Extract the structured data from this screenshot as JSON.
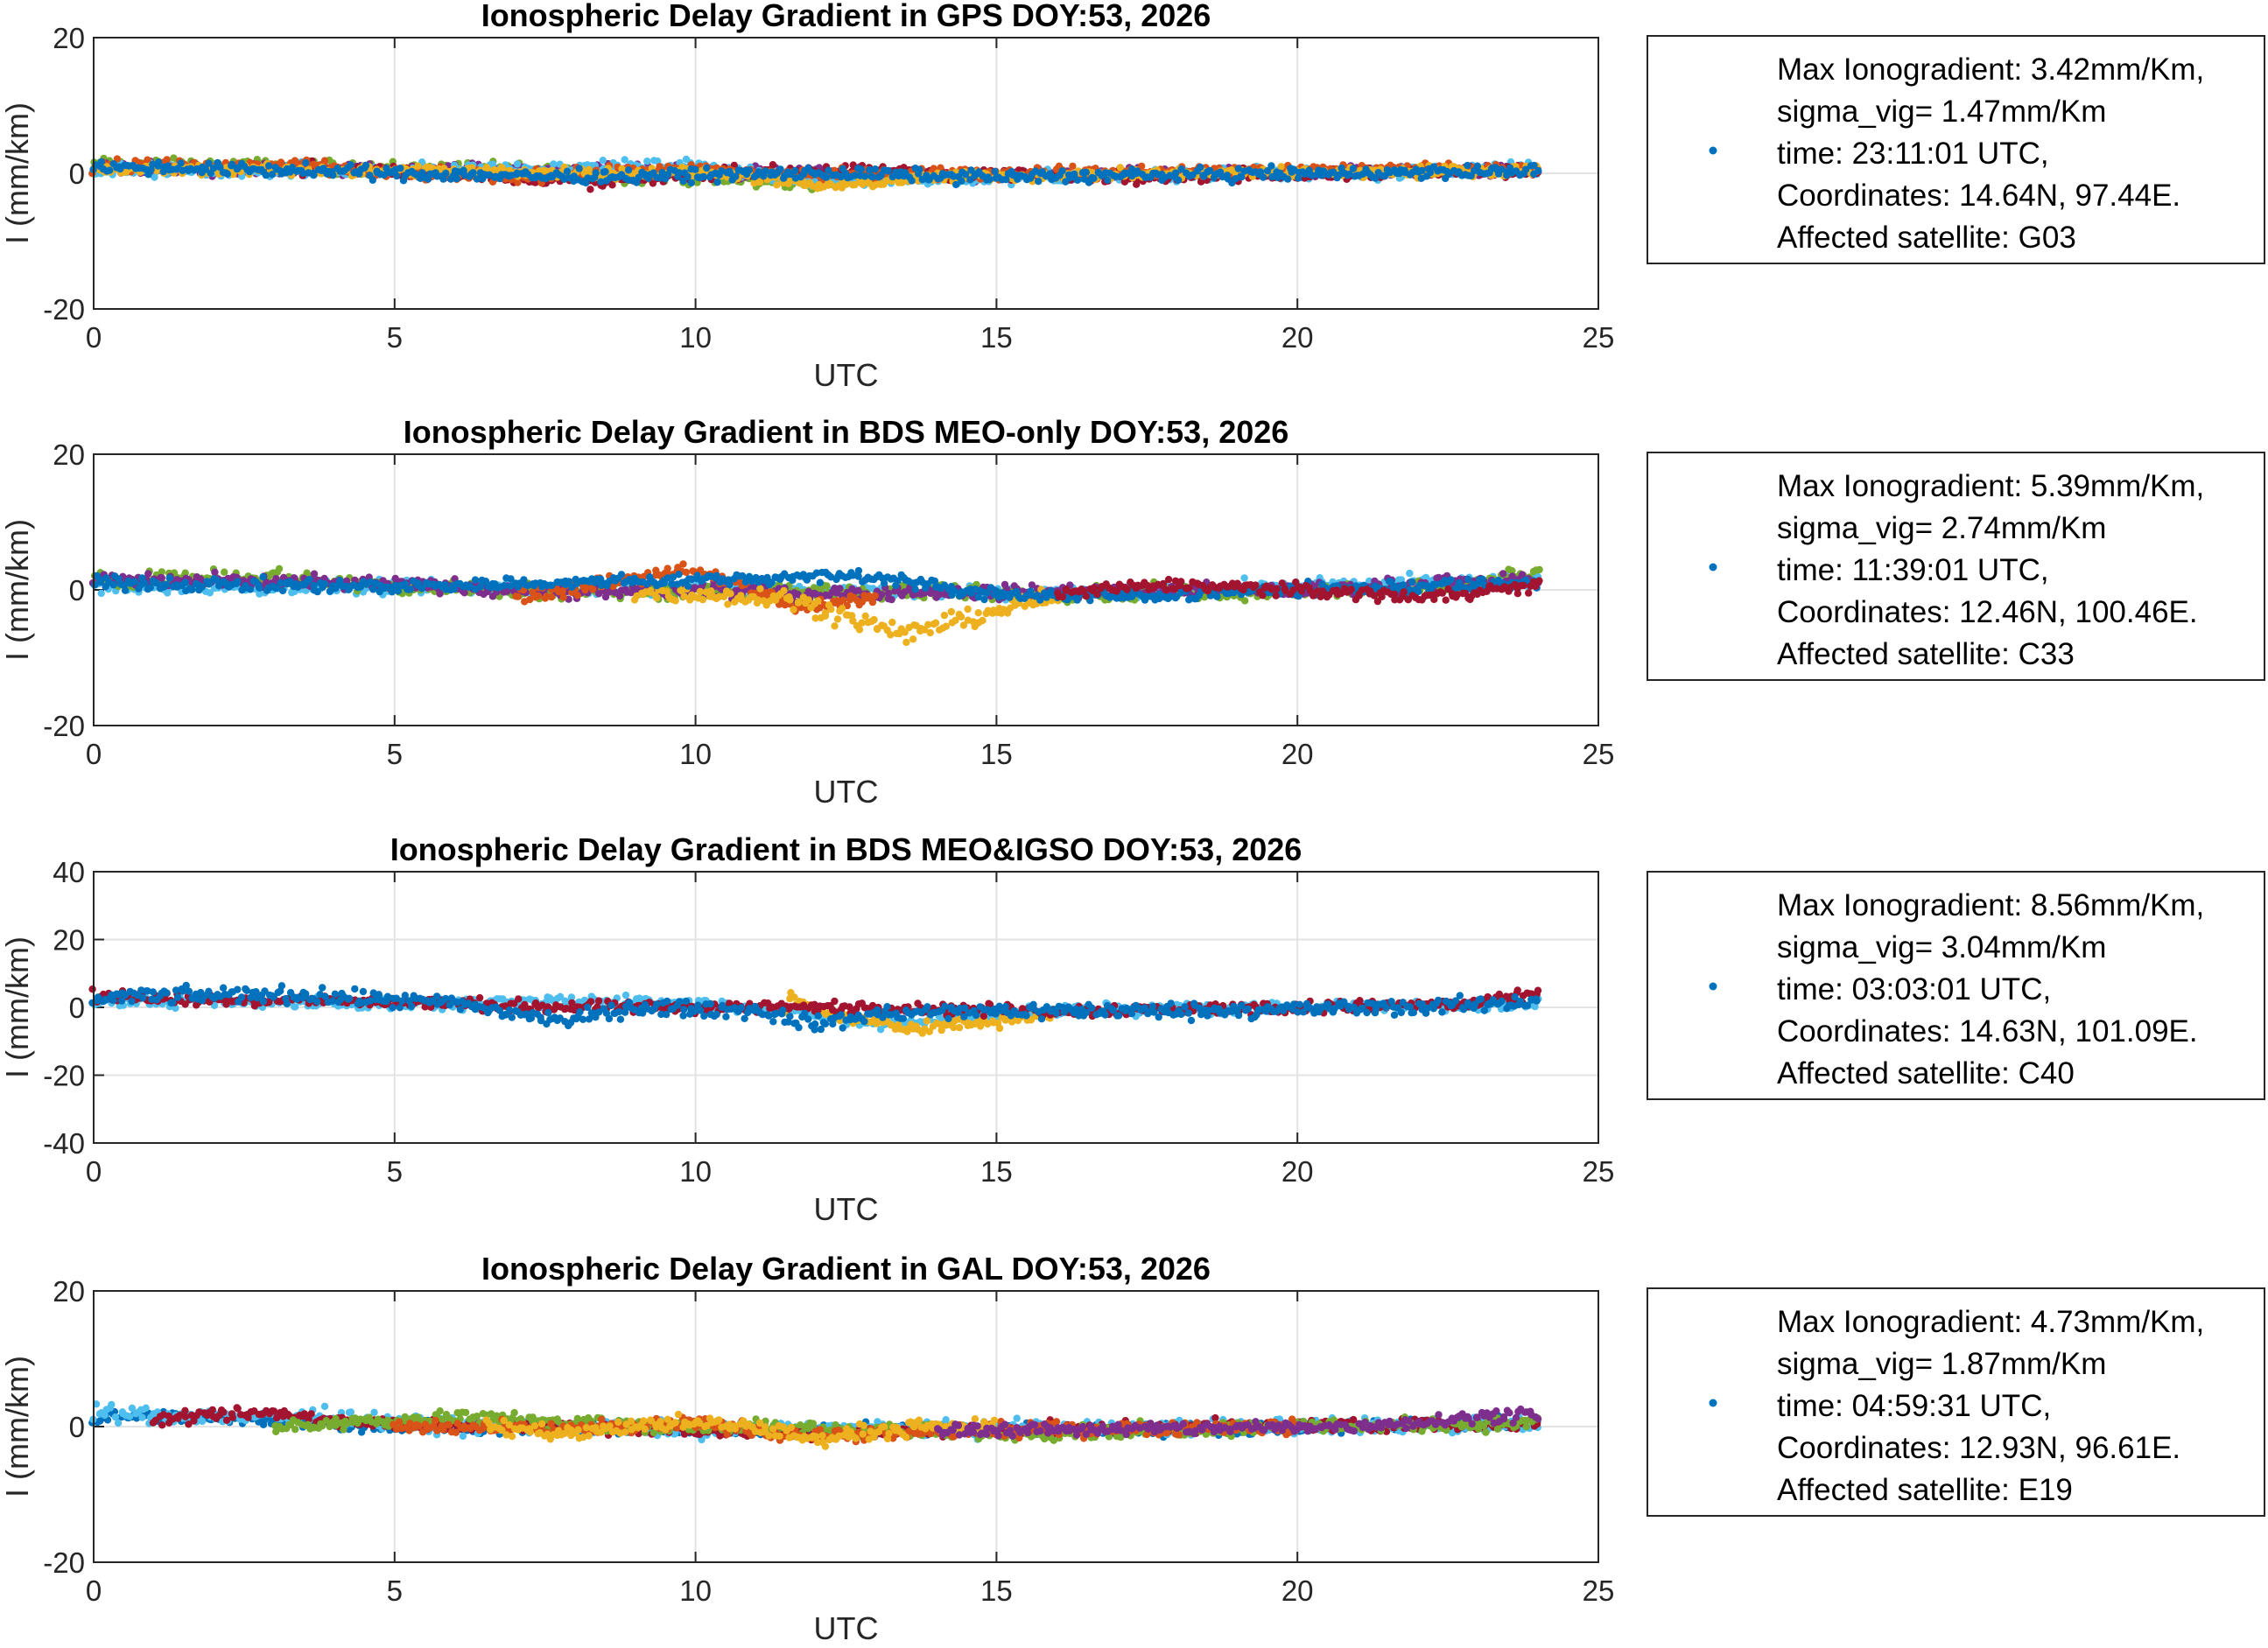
{
  "colors": {
    "blue": "#0072BD",
    "orange": "#D95319",
    "yellow": "#EDB120",
    "purple": "#7E2F8E",
    "green": "#77AC30",
    "cyan": "#4DBEEE",
    "red": "#A2142F"
  },
  "chart_data": [
    {
      "type": "scatter",
      "title": "Ionospheric Delay Gradient in GPS DOY:53, 2026",
      "xlabel": "UTC",
      "ylabel": "I (mm/km)",
      "xlim": [
        0,
        25
      ],
      "ylim": [
        -20,
        20
      ],
      "xticks": [
        0,
        5,
        10,
        15,
        20,
        25
      ],
      "yticks": [
        -20,
        0,
        20
      ],
      "grid": true,
      "legend": {
        "placement": "outside-right",
        "marker_color": "#0072BD",
        "lines": [
          "Max Ionogradient:  3.42mm/Km,",
          "sigma_vig= 1.47mm/Km",
          "time: 23:11:01 UTC,",
          "Coordinates: 14.64N,  97.44E.",
          "Affected satellite: G03"
        ]
      },
      "series": [
        {
          "color": "#77AC30",
          "spread": 0.9,
          "trend": [
            [
              0,
              1.2
            ],
            [
              3,
              1
            ],
            [
              7,
              0.5
            ],
            [
              12,
              -1.5
            ]
          ]
        },
        {
          "color": "#7E2F8E",
          "spread": 0.8,
          "trend": [
            [
              0,
              0.8
            ],
            [
              4,
              0.5
            ],
            [
              10,
              0.3
            ],
            [
              14,
              -0.5
            ],
            [
              24,
              0.5
            ]
          ]
        },
        {
          "color": "#4DBEEE",
          "spread": 0.9,
          "trend": [
            [
              0,
              0.5
            ],
            [
              5,
              0.3
            ],
            [
              10,
              1
            ],
            [
              12,
              -1
            ],
            [
              16,
              -0.5
            ],
            [
              24,
              0.5
            ]
          ]
        },
        {
          "color": "#A2142F",
          "spread": 0.8,
          "trend": [
            [
              3,
              1
            ],
            [
              6,
              0
            ],
            [
              8.5,
              -1.5
            ],
            [
              10,
              0
            ],
            [
              12,
              0.3
            ],
            [
              17,
              -0.5
            ],
            [
              24,
              0.5
            ]
          ]
        },
        {
          "color": "#D95319",
          "spread": 0.8,
          "trend": [
            [
              0,
              1.2
            ],
            [
              3.5,
              1
            ],
            [
              5,
              0
            ],
            [
              7,
              -0.5
            ],
            [
              10,
              0.5
            ],
            [
              12,
              -0.3
            ],
            [
              24,
              0.8
            ]
          ]
        },
        {
          "color": "#EDB120",
          "spread": 0.7,
          "trend": [
            [
              0,
              0.5
            ],
            [
              2,
              0.5
            ],
            [
              10.5,
              0
            ],
            [
              12,
              -2
            ],
            [
              14,
              -0.5
            ],
            [
              24,
              0.5
            ]
          ]
        },
        {
          "color": "#0072BD",
          "spread": 0.8,
          "trend": [
            [
              0,
              1
            ],
            [
              3,
              0.5
            ],
            [
              5,
              0
            ],
            [
              8,
              -0.5
            ],
            [
              12,
              0
            ],
            [
              15,
              -0.5
            ],
            [
              24,
              0.3
            ]
          ]
        }
      ]
    },
    {
      "type": "scatter",
      "title": "Ionospheric Delay Gradient in BDS MEO-only DOY:53, 2026",
      "xlabel": "UTC",
      "ylabel": "I (mm/km)",
      "xlim": [
        0,
        25
      ],
      "ylim": [
        -20,
        20
      ],
      "xticks": [
        0,
        5,
        10,
        15,
        20,
        25
      ],
      "yticks": [
        -20,
        0,
        20
      ],
      "grid": true,
      "legend": {
        "placement": "outside-right",
        "marker_color": "#0072BD",
        "lines": [
          "Max Ionogradient:  5.39mm/Km,",
          "sigma_vig= 2.74mm/Km",
          "time: 11:39:01 UTC,",
          "Coordinates: 12.46N, 100.46E.",
          "Affected satellite: C33"
        ]
      },
      "series": [
        {
          "color": "#4DBEEE",
          "spread": 0.9,
          "trend": [
            [
              0,
              0.5
            ],
            [
              6,
              0.3
            ],
            [
              12,
              0
            ],
            [
              16,
              -0.5
            ],
            [
              24,
              1.5
            ]
          ]
        },
        {
          "color": "#77AC30",
          "spread": 1.0,
          "trend": [
            [
              0,
              1.5
            ],
            [
              3,
              2
            ],
            [
              5,
              0.5
            ],
            [
              7,
              0
            ],
            [
              16,
              -0.5
            ],
            [
              22,
              0
            ],
            [
              24,
              2.5
            ]
          ]
        },
        {
          "color": "#7E2F8E",
          "spread": 0.9,
          "trend": [
            [
              0,
              1.5
            ],
            [
              4,
              1
            ],
            [
              6,
              0.5
            ],
            [
              8,
              -0.5
            ],
            [
              10,
              0
            ],
            [
              12,
              -0.5
            ],
            [
              20,
              0
            ],
            [
              24,
              1.5
            ]
          ]
        },
        {
          "color": "#D95319",
          "spread": 1.0,
          "trend": [
            [
              7,
              -1
            ],
            [
              8.5,
              1
            ],
            [
              9.8,
              3
            ],
            [
              11,
              0
            ],
            [
              11.8,
              -3
            ],
            [
              13,
              -1
            ]
          ]
        },
        {
          "color": "#EDB120",
          "spread": 1.2,
          "trend": [
            [
              9,
              -0.5
            ],
            [
              11.5,
              -1
            ],
            [
              12.5,
              -4
            ],
            [
              13.5,
              -6.5
            ],
            [
              15,
              -3
            ],
            [
              16,
              -1
            ]
          ]
        },
        {
          "color": "#0072BD",
          "spread": 0.8,
          "trend": [
            [
              0,
              1
            ],
            [
              5,
              0.5
            ],
            [
              12.5,
              2
            ],
            [
              13.2,
              2
            ],
            [
              14.5,
              -0.5
            ],
            [
              17,
              -1
            ],
            [
              20,
              0
            ],
            [
              24,
              1
            ]
          ]
        },
        {
          "color": "#A2142F",
          "spread": 0.8,
          "trend": [
            [
              16,
              -0.5
            ],
            [
              18,
              0.8
            ],
            [
              20,
              0
            ],
            [
              22,
              -1
            ],
            [
              24,
              0.5
            ]
          ]
        }
      ]
    },
    {
      "type": "scatter",
      "title": "Ionospheric Delay Gradient in BDS MEO&IGSO DOY:53, 2026",
      "xlabel": "UTC",
      "ylabel": "I (mm/km)",
      "xlim": [
        0,
        25
      ],
      "ylim": [
        -40,
        40
      ],
      "xticks": [
        0,
        5,
        10,
        15,
        20,
        25
      ],
      "yticks": [
        -40,
        -20,
        0,
        20,
        40
      ],
      "grid": true,
      "legend": {
        "placement": "outside-right",
        "marker_color": "#0072BD",
        "lines": [
          "Max Ionogradient:  8.56mm/Km,",
          "sigma_vig= 3.04mm/Km",
          "time: 03:03:01 UTC,",
          "Coordinates: 14.63N, 101.09E.",
          "Affected satellite: C40"
        ]
      },
      "series": [
        {
          "color": "#4DBEEE",
          "spread": 1.5,
          "trend": [
            [
              0,
              2
            ],
            [
              6,
              1
            ],
            [
              9,
              2
            ],
            [
              11,
              0
            ],
            [
              13,
              -5
            ],
            [
              16,
              -1
            ],
            [
              24,
              1
            ]
          ]
        },
        {
          "color": "#EDB120",
          "spread": 1.5,
          "trend": [
            [
              11.5,
              3
            ],
            [
              12.5,
              -3
            ],
            [
              13.5,
              -6
            ],
            [
              15,
              -4
            ],
            [
              16,
              -2
            ]
          ]
        },
        {
          "color": "#A2142F",
          "spread": 1.5,
          "trend": [
            [
              0,
              3
            ],
            [
              4,
              2
            ],
            [
              8,
              0
            ],
            [
              12,
              0
            ],
            [
              16,
              -1
            ],
            [
              20,
              0
            ],
            [
              23,
              1
            ],
            [
              24,
              4
            ]
          ]
        },
        {
          "color": "#0072BD",
          "spread": 2.0,
          "trend": [
            [
              0,
              3
            ],
            [
              3,
              4
            ],
            [
              6,
              1
            ],
            [
              7.8,
              -4
            ],
            [
              9,
              0
            ],
            [
              11,
              -1
            ],
            [
              12,
              -5
            ],
            [
              13,
              -2
            ],
            [
              15,
              -1
            ],
            [
              18,
              -1
            ],
            [
              22,
              0
            ],
            [
              24,
              2
            ]
          ]
        }
      ]
    },
    {
      "type": "scatter",
      "title": "Ionospheric Delay Gradient in GAL DOY:53, 2026",
      "xlabel": "UTC",
      "ylabel": "I (mm/km)",
      "xlim": [
        0,
        25
      ],
      "ylim": [
        -20,
        20
      ],
      "xticks": [
        0,
        5,
        10,
        15,
        20,
        25
      ],
      "yticks": [
        -20,
        0,
        20
      ],
      "grid": true,
      "legend": {
        "placement": "outside-right",
        "marker_color": "#0072BD",
        "lines": [
          "Max Ionogradient:  4.73mm/Km,",
          "sigma_vig= 1.87mm/Km",
          "time: 04:59:31 UTC,",
          "Coordinates: 12.93N,  96.61E.",
          "Affected satellite: E19"
        ]
      },
      "series": [
        {
          "color": "#0072BD",
          "spread": 0.8,
          "trend": [
            [
              0,
              1.5
            ],
            [
              3,
              1
            ],
            [
              5,
              0
            ],
            [
              8,
              -0.3
            ],
            [
              13,
              -0.5
            ],
            [
              17,
              -0.5
            ],
            [
              24,
              0.5
            ]
          ]
        },
        {
          "color": "#4DBEEE",
          "spread": 1.0,
          "trend": [
            [
              0,
              2
            ],
            [
              2,
              1.5
            ],
            [
              4,
              1.5
            ],
            [
              6,
              0
            ],
            [
              12,
              -0.5
            ],
            [
              24,
              0.3
            ]
          ]
        },
        {
          "color": "#A2142F",
          "spread": 0.8,
          "trend": [
            [
              1,
              1
            ],
            [
              3,
              2
            ],
            [
              4.5,
              0.5
            ],
            [
              8,
              0
            ],
            [
              12,
              -1
            ],
            [
              16,
              -0.3
            ],
            [
              24,
              0.5
            ]
          ]
        },
        {
          "color": "#77AC30",
          "spread": 0.9,
          "trend": [
            [
              3,
              0
            ],
            [
              5,
              1
            ],
            [
              6.5,
              1.5
            ],
            [
              8,
              0.5
            ],
            [
              15,
              -1
            ],
            [
              20,
              0
            ],
            [
              24,
              0.5
            ]
          ]
        },
        {
          "color": "#D95319",
          "spread": 0.9,
          "trend": [
            [
              5,
              0
            ],
            [
              8,
              -0.5
            ],
            [
              10,
              0.5
            ],
            [
              12,
              -1.5
            ],
            [
              15,
              -0.5
            ],
            [
              20,
              0
            ]
          ]
        },
        {
          "color": "#EDB120",
          "spread": 1.0,
          "trend": [
            [
              6.5,
              0
            ],
            [
              8,
              -1
            ],
            [
              9.5,
              0.5
            ],
            [
              11,
              0
            ],
            [
              12,
              -2
            ],
            [
              13,
              -0.5
            ],
            [
              15,
              0
            ]
          ]
        },
        {
          "color": "#7E2F8E",
          "spread": 0.8,
          "trend": [
            [
              14,
              -0.5
            ],
            [
              18,
              -0.3
            ],
            [
              21,
              0
            ],
            [
              23,
              1.5
            ],
            [
              24,
              2
            ]
          ]
        }
      ]
    }
  ]
}
